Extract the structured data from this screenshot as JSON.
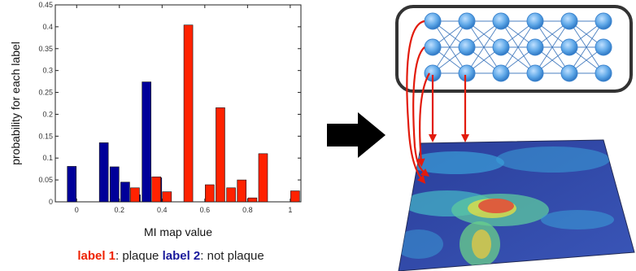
{
  "chart_data": {
    "type": "bar",
    "title": "",
    "xlabel": "MI map value",
    "ylabel": "probability for each label",
    "xlim": [
      -0.1,
      1.05
    ],
    "ylim": [
      0,
      0.45
    ],
    "xticks": [
      "0",
      "0.2",
      "0.4",
      "0.6",
      "0.8",
      "1"
    ],
    "xtick_values": [
      0,
      0.2,
      0.4,
      0.6,
      0.8,
      1
    ],
    "yticks": [
      "0",
      "0.05",
      "0.1",
      "0.15",
      "0.2",
      "0.25",
      "0.3",
      "0.35",
      "0.4",
      "0.45"
    ],
    "ytick_values": [
      0,
      0.05,
      0.1,
      0.15,
      0.2,
      0.25,
      0.3,
      0.35,
      0.4,
      0.45
    ],
    "grid": false,
    "series": [
      {
        "name": "label 2",
        "color": "#000099",
        "x": [
          0,
          0.15,
          0.2,
          0.25,
          0.3,
          0.35,
          0.4
        ],
        "values": [
          0.081,
          0.135,
          0.08,
          0.045,
          0.016,
          0.274,
          0.055
        ]
      },
      {
        "name": "label 1",
        "color": "#ff2200",
        "x": [
          0.25,
          0.35,
          0.4,
          0.5,
          0.6,
          0.65,
          0.7,
          0.75,
          0.8,
          0.85,
          0.95,
          1.0
        ],
        "values": [
          0.032,
          0.057,
          0.023,
          0.404,
          0.039,
          0.215,
          0.032,
          0.05,
          0.009,
          0.11,
          0.0,
          0.025
        ]
      }
    ]
  },
  "legend": {
    "label1": "label 1",
    "label1_desc": ": plaque ",
    "label2": "label 2",
    "label2_desc": ": not plaque"
  },
  "colors": {
    "label1": "#ff2200",
    "label2": "#000099",
    "arrow": "#000000",
    "network_nodes": "#5fa8e8",
    "network_frame": "#333333",
    "connection_arrows": "#e21b0c"
  },
  "network": {
    "rows": 3,
    "cols": 6
  }
}
